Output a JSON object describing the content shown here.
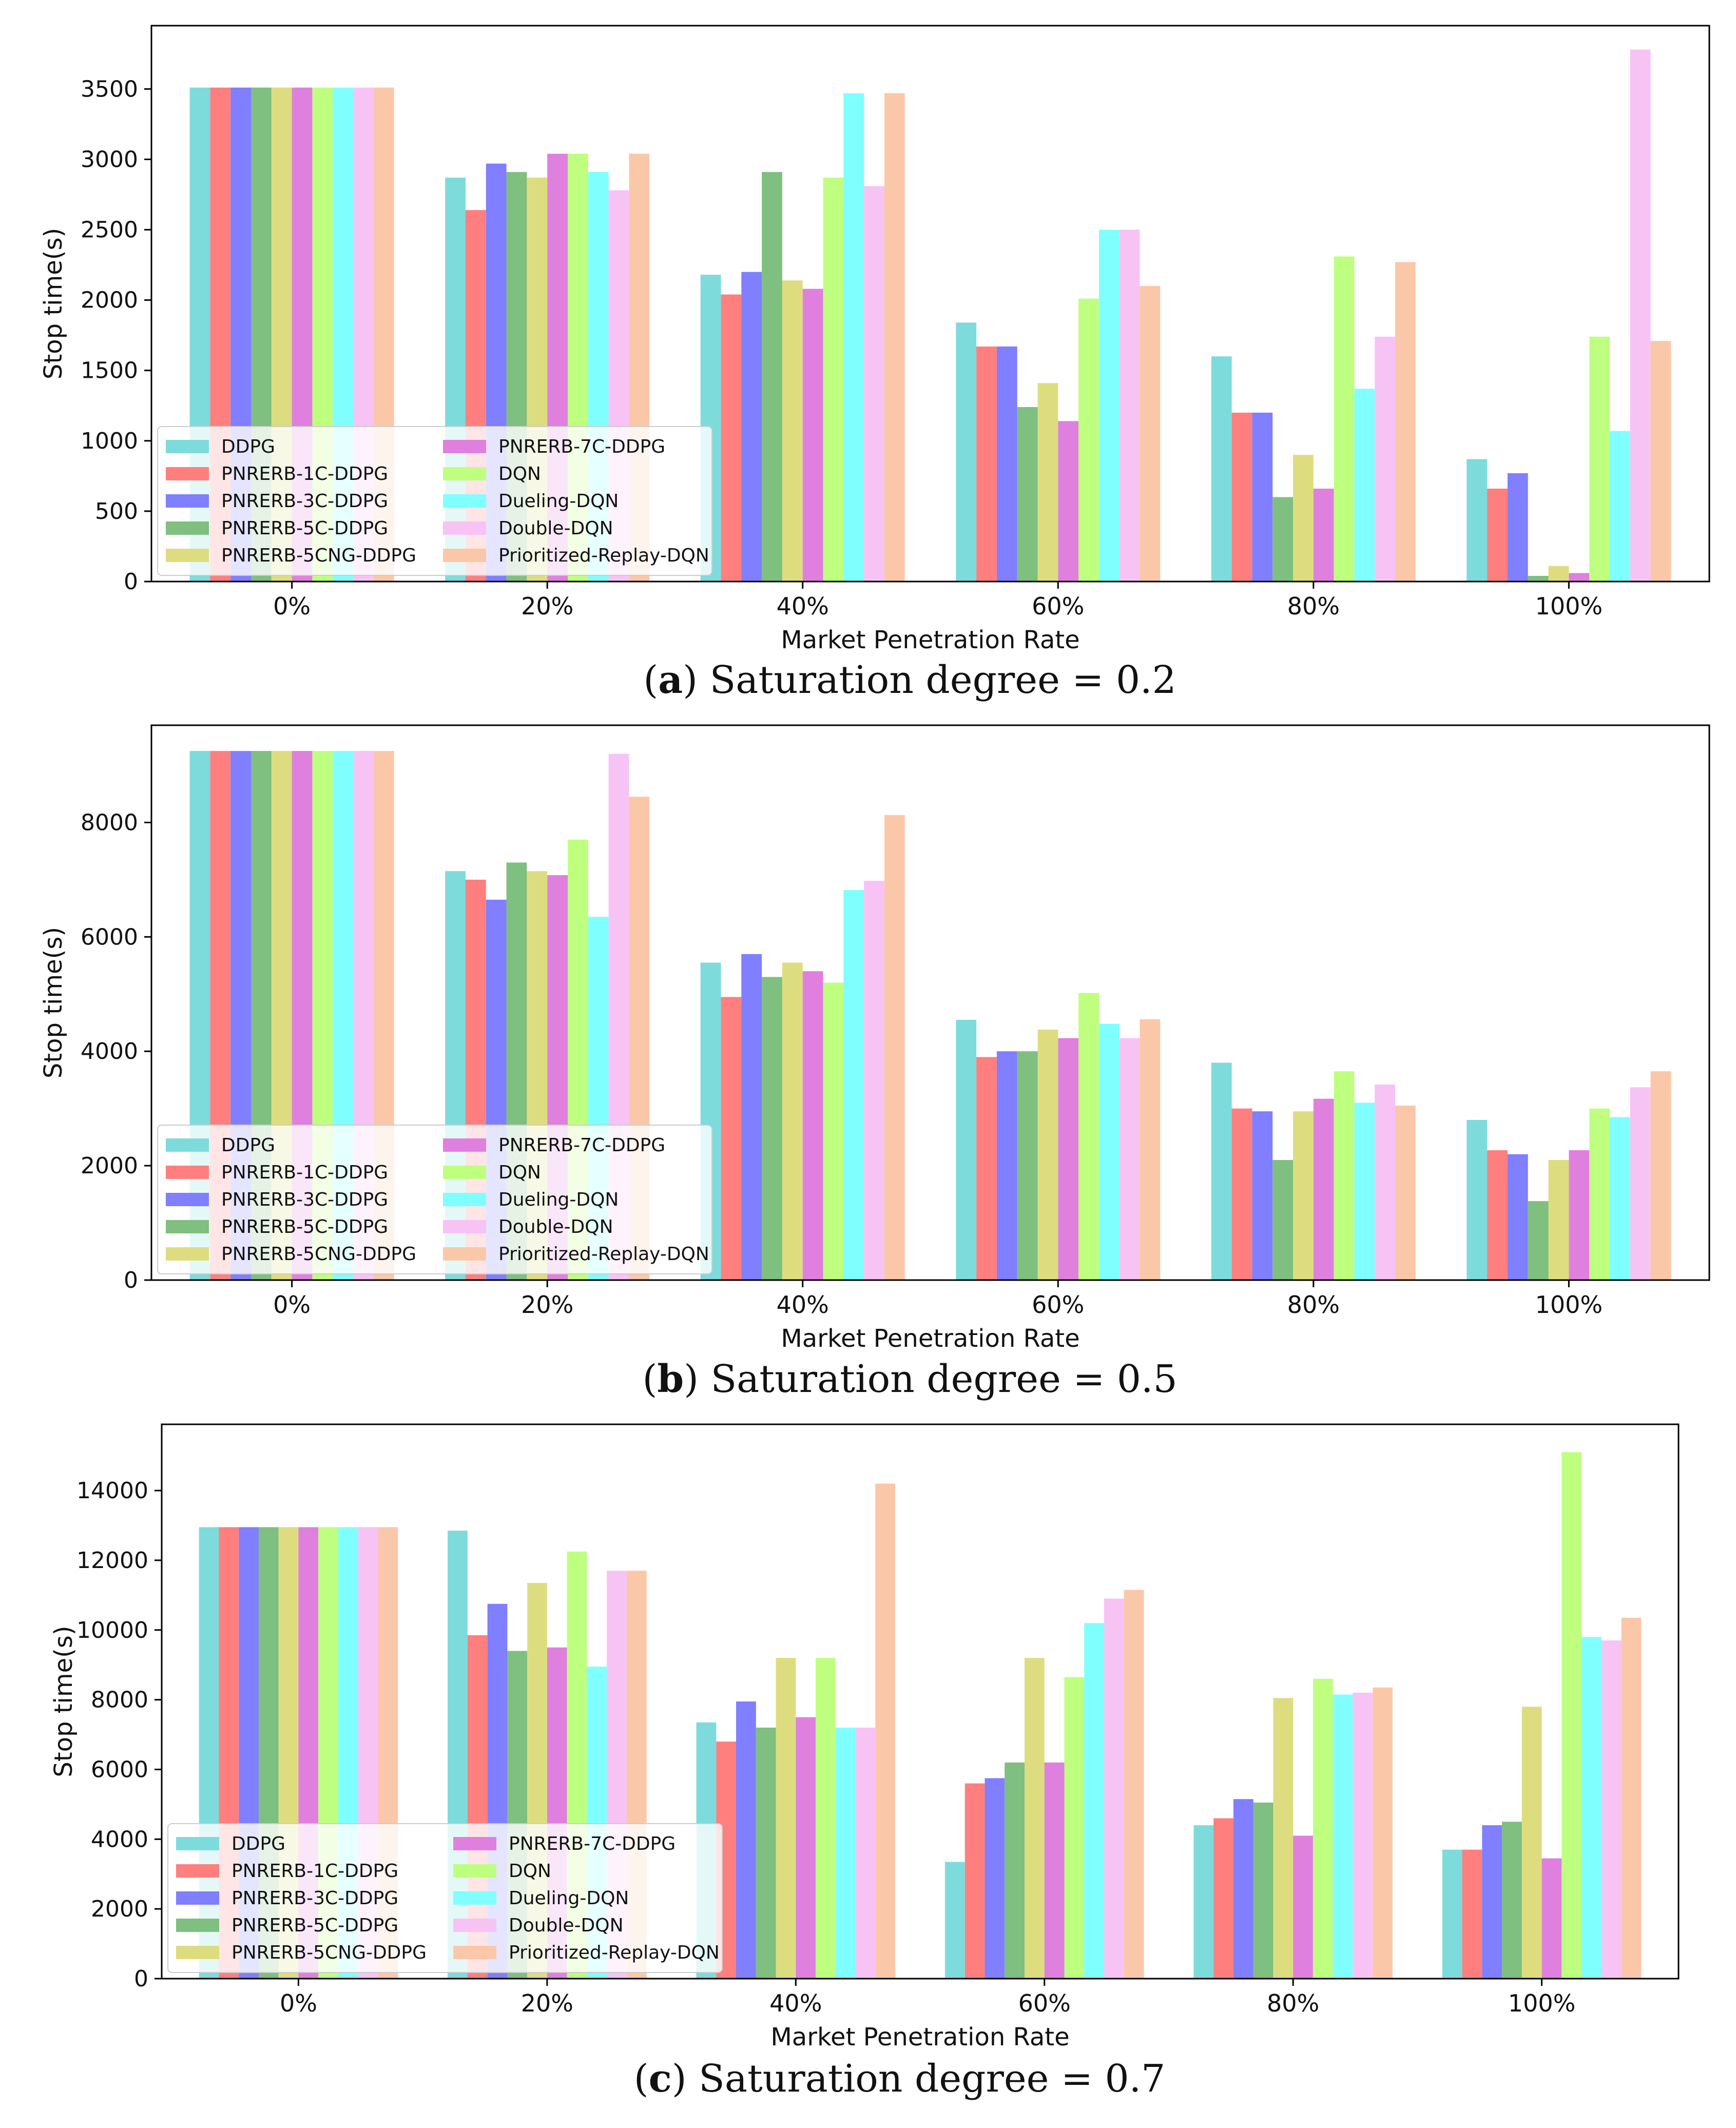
{
  "figure": {
    "series_names": [
      "DDPG",
      "PNRERB-1C-DDPG",
      "PNRERB-3C-DDPG",
      "PNRERB-5C-DDPG",
      "PNRERB-5CNG-DDPG",
      "PNRERB-7C-DDPG",
      "DQN",
      "Dueling-DQN",
      "Double-DQN",
      "Prioritized-Replay-DQN"
    ],
    "series_colors": [
      "#7ddbdc",
      "#ff7f7f",
      "#7f7fff",
      "#7fbf7f",
      "#dddd80",
      "#df80df",
      "#bfff7f",
      "#80ffff",
      "#f7c3f5",
      "#fac8a8"
    ]
  },
  "chart_data": [
    {
      "type": "bar",
      "caption_label": "a",
      "caption_text": "Saturation degree = 0.2",
      "title": "",
      "xlabel": "Market Penetration Rate",
      "ylabel": "Stop time(s)",
      "categories": [
        "0%",
        "20%",
        "40%",
        "60%",
        "80%",
        "100%"
      ],
      "ylim": [
        0,
        3950
      ],
      "yticks": [
        0,
        500,
        1000,
        1500,
        2000,
        2500,
        3000,
        3500
      ],
      "legend_position": "lower-left",
      "series": [
        {
          "name": "DDPG",
          "values": [
            3510,
            2870,
            2180,
            1840,
            1600,
            870
          ]
        },
        {
          "name": "PNRERB-1C-DDPG",
          "values": [
            3510,
            2640,
            2040,
            1670,
            1200,
            660
          ]
        },
        {
          "name": "PNRERB-3C-DDPG",
          "values": [
            3510,
            2970,
            2200,
            1670,
            1200,
            770
          ]
        },
        {
          "name": "PNRERB-5C-DDPG",
          "values": [
            3510,
            2910,
            2910,
            1240,
            600,
            40
          ]
        },
        {
          "name": "PNRERB-5CNG-DDPG",
          "values": [
            3510,
            2870,
            2140,
            1410,
            900,
            110
          ]
        },
        {
          "name": "PNRERB-7C-DDPG",
          "values": [
            3510,
            3040,
            2080,
            1140,
            660,
            60
          ]
        },
        {
          "name": "DQN",
          "values": [
            3510,
            3040,
            2870,
            2010,
            2310,
            1740
          ]
        },
        {
          "name": "Dueling-DQN",
          "values": [
            3510,
            2910,
            3470,
            2500,
            1370,
            1070
          ]
        },
        {
          "name": "Double-DQN",
          "values": [
            3510,
            2780,
            2810,
            2500,
            1740,
            3780
          ]
        },
        {
          "name": "Prioritized-Replay-DQN",
          "values": [
            3510,
            3040,
            3470,
            2100,
            2270,
            1710
          ]
        }
      ]
    },
    {
      "type": "bar",
      "caption_label": "b",
      "caption_text": "Saturation degree = 0.5",
      "title": "",
      "xlabel": "Market Penetration Rate",
      "ylabel": "Stop time(s)",
      "categories": [
        "0%",
        "20%",
        "40%",
        "60%",
        "80%",
        "100%"
      ],
      "ylim": [
        0,
        9700
      ],
      "yticks": [
        0,
        2000,
        4000,
        6000,
        8000
      ],
      "legend_position": "lower-left",
      "series": [
        {
          "name": "DDPG",
          "values": [
            9250,
            7150,
            5550,
            4550,
            3800,
            2800
          ]
        },
        {
          "name": "PNRERB-1C-DDPG",
          "values": [
            9250,
            7000,
            4950,
            3900,
            3000,
            2270
          ]
        },
        {
          "name": "PNRERB-3C-DDPG",
          "values": [
            9250,
            6650,
            5700,
            4000,
            2950,
            2200
          ]
        },
        {
          "name": "PNRERB-5C-DDPG",
          "values": [
            9250,
            7300,
            5300,
            4000,
            2100,
            1380
          ]
        },
        {
          "name": "PNRERB-5CNG-DDPG",
          "values": [
            9250,
            7150,
            5550,
            4380,
            2950,
            2100
          ]
        },
        {
          "name": "PNRERB-7C-DDPG",
          "values": [
            9250,
            7080,
            5400,
            4230,
            3170,
            2270
          ]
        },
        {
          "name": "DQN",
          "values": [
            9250,
            7700,
            5200,
            5020,
            3650,
            3000
          ]
        },
        {
          "name": "Dueling-DQN",
          "values": [
            9250,
            6350,
            6820,
            4480,
            3100,
            2850
          ]
        },
        {
          "name": "Double-DQN",
          "values": [
            9250,
            9200,
            6980,
            4230,
            3420,
            3370
          ]
        },
        {
          "name": "Prioritized-Replay-DQN",
          "values": [
            9250,
            8450,
            8130,
            4560,
            3050,
            3650
          ]
        }
      ]
    },
    {
      "type": "bar",
      "caption_label": "c",
      "caption_text": "Saturation degree = 0.7",
      "title": "",
      "xlabel": "Market Penetration Rate",
      "ylabel": "Stop time(s)",
      "categories": [
        "0%",
        "20%",
        "40%",
        "60%",
        "80%",
        "100%"
      ],
      "ylim": [
        0,
        15900
      ],
      "yticks": [
        0,
        2000,
        4000,
        6000,
        8000,
        10000,
        12000,
        14000
      ],
      "legend_position": "lower-left",
      "series": [
        {
          "name": "DDPG",
          "values": [
            12950,
            12850,
            7350,
            3350,
            4400,
            3700
          ]
        },
        {
          "name": "PNRERB-1C-DDPG",
          "values": [
            12950,
            9850,
            6800,
            5600,
            4600,
            3700
          ]
        },
        {
          "name": "PNRERB-3C-DDPG",
          "values": [
            12950,
            10750,
            7950,
            5750,
            5150,
            4400
          ]
        },
        {
          "name": "PNRERB-5C-DDPG",
          "values": [
            12950,
            9400,
            7200,
            6200,
            5050,
            4500
          ]
        },
        {
          "name": "PNRERB-5CNG-DDPG",
          "values": [
            12950,
            11350,
            9200,
            9200,
            8050,
            7800
          ]
        },
        {
          "name": "PNRERB-7C-DDPG",
          "values": [
            12950,
            9500,
            7500,
            6200,
            4100,
            3450
          ]
        },
        {
          "name": "DQN",
          "values": [
            12950,
            12250,
            9200,
            8650,
            8600,
            15100
          ]
        },
        {
          "name": "Dueling-DQN",
          "values": [
            12950,
            8950,
            7200,
            10200,
            8150,
            9800
          ]
        },
        {
          "name": "Double-DQN",
          "values": [
            12950,
            11700,
            7200,
            10900,
            8200,
            9700
          ]
        },
        {
          "name": "Prioritized-Replay-DQN",
          "values": [
            12950,
            11700,
            14200,
            11150,
            8350,
            10350
          ]
        }
      ]
    }
  ]
}
